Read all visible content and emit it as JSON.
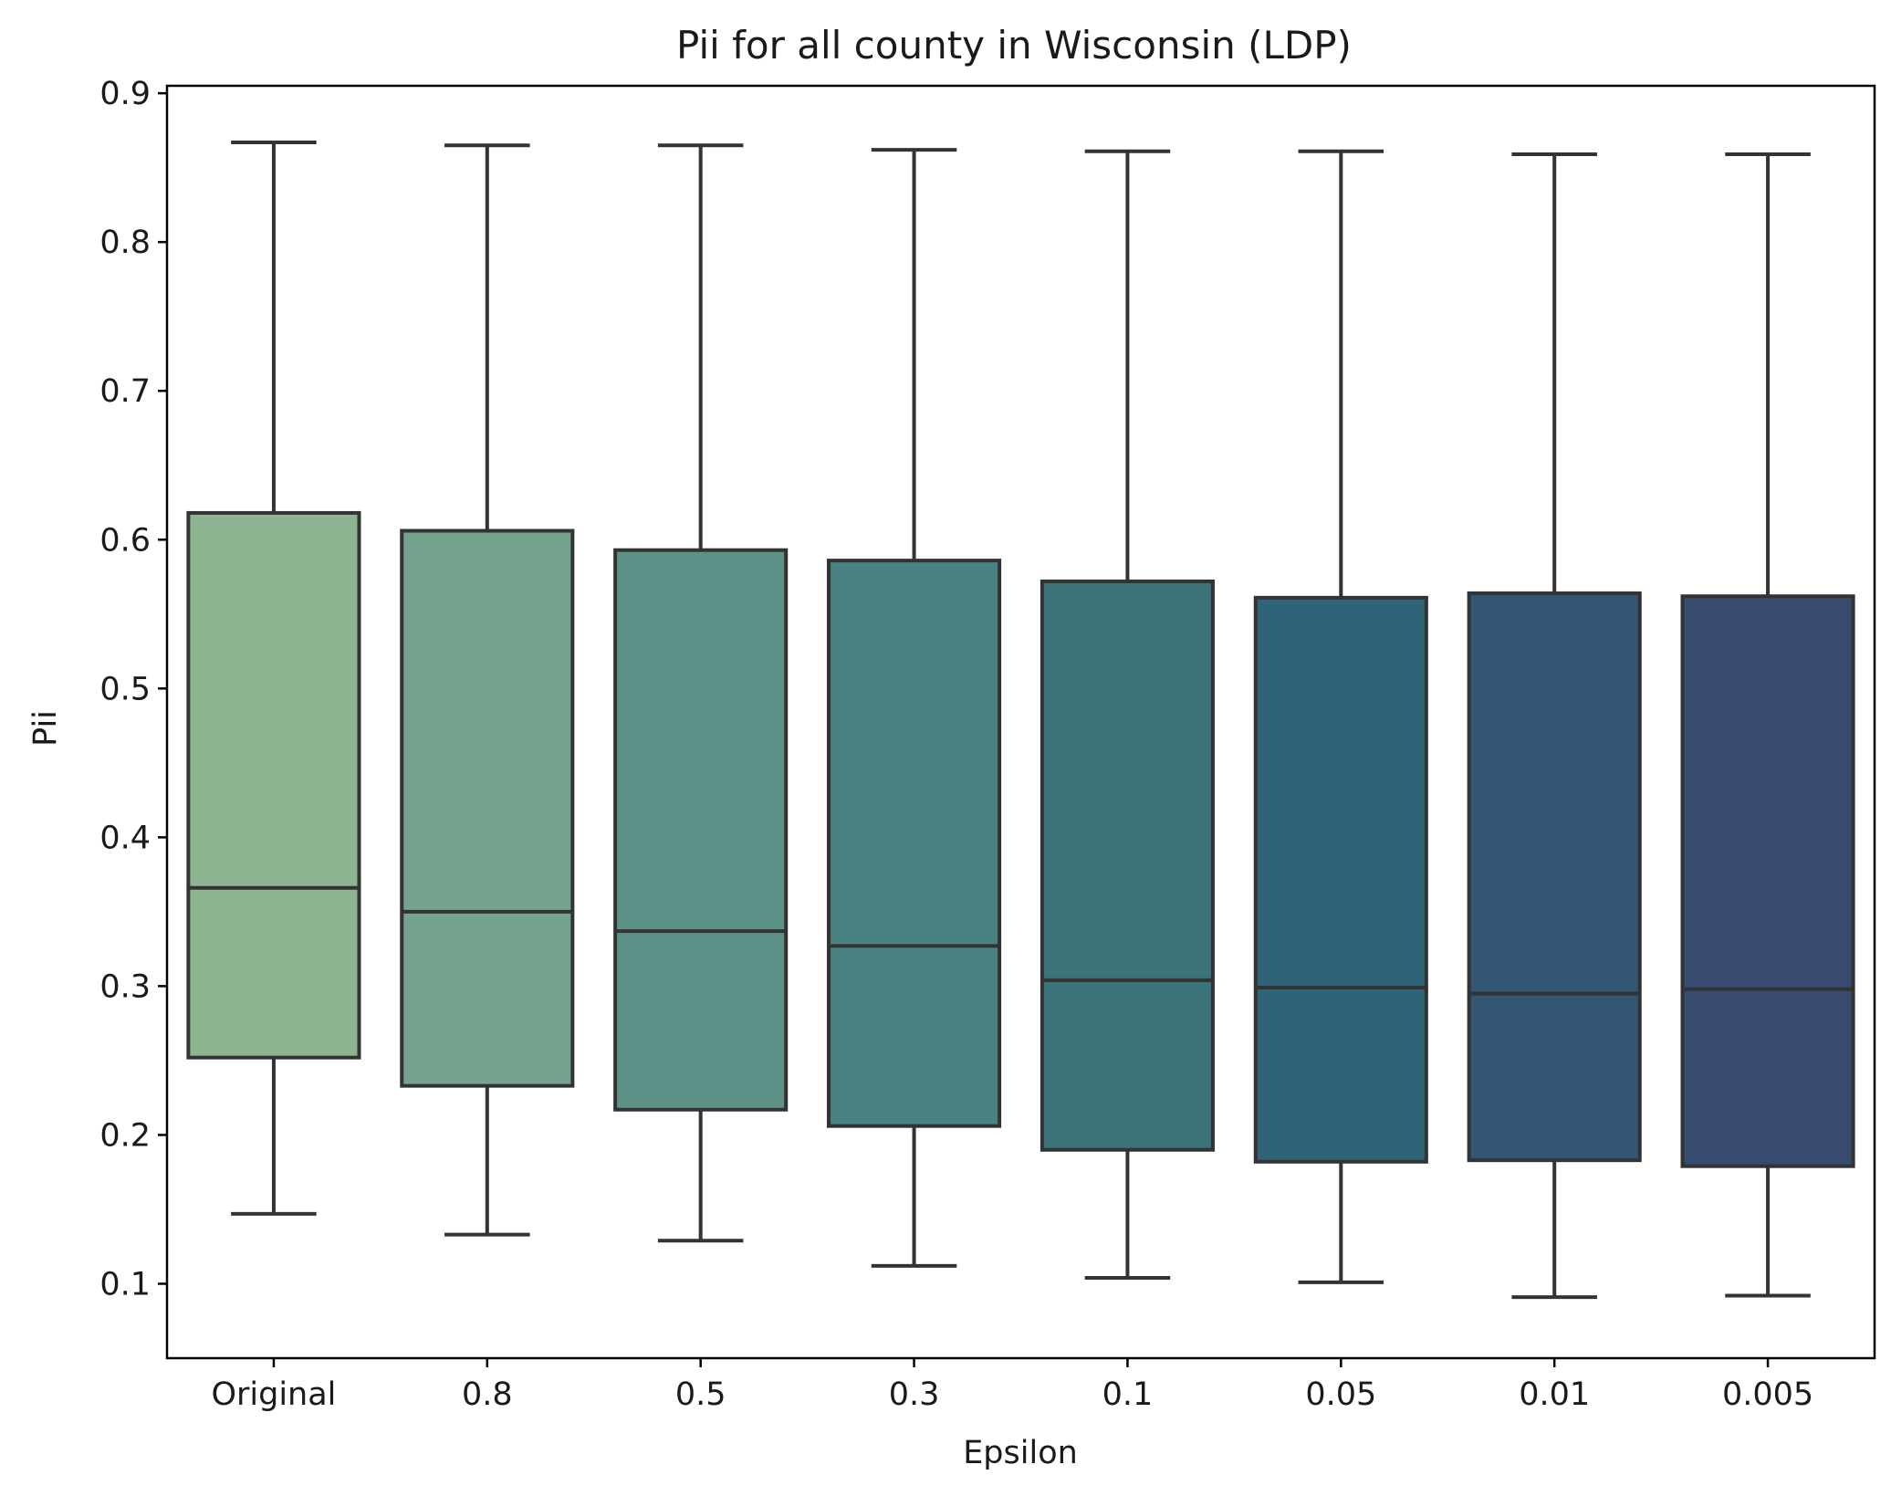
{
  "chart_data": {
    "type": "box",
    "title": "Pii for all county in Wisconsin (LDP)",
    "xlabel": "Epsilon",
    "ylabel": "Pii",
    "ylim": [
      0.05,
      0.905
    ],
    "yticks": [
      0.1,
      0.2,
      0.3,
      0.4,
      0.5,
      0.6,
      0.7,
      0.8,
      0.9
    ],
    "ytick_labels": [
      "0.1",
      "0.2",
      "0.3",
      "0.4",
      "0.5",
      "0.6",
      "0.7",
      "0.8",
      "0.9"
    ],
    "categories": [
      "Original",
      "0.8",
      "0.5",
      "0.3",
      "0.1",
      "0.05",
      "0.01",
      "0.005"
    ],
    "boxes": [
      {
        "category": "Original",
        "whisker_low": 0.147,
        "q1": 0.252,
        "median": 0.366,
        "q3": 0.618,
        "whisker_high": 0.867,
        "color": "#8db592"
      },
      {
        "category": "0.8",
        "whisker_low": 0.133,
        "q1": 0.233,
        "median": 0.35,
        "q3": 0.606,
        "whisker_high": 0.865,
        "color": "#76a38d"
      },
      {
        "category": "0.5",
        "whisker_low": 0.129,
        "q1": 0.217,
        "median": 0.337,
        "q3": 0.593,
        "whisker_high": 0.865,
        "color": "#5e9288"
      },
      {
        "category": "0.3",
        "whisker_low": 0.112,
        "q1": 0.206,
        "median": 0.327,
        "q3": 0.586,
        "whisker_high": 0.862,
        "color": "#4a8181"
      },
      {
        "category": "0.1",
        "whisker_low": 0.104,
        "q1": 0.19,
        "median": 0.304,
        "q3": 0.572,
        "whisker_high": 0.861,
        "color": "#3b737b"
      },
      {
        "category": "0.05",
        "whisker_low": 0.101,
        "q1": 0.182,
        "median": 0.299,
        "q3": 0.561,
        "whisker_high": 0.861,
        "color": "#2f6378"
      },
      {
        "category": "0.01",
        "whisker_low": 0.091,
        "q1": 0.183,
        "median": 0.295,
        "q3": 0.564,
        "whisker_high": 0.859,
        "color": "#325674"
      },
      {
        "category": "0.005",
        "whisker_low": 0.092,
        "q1": 0.179,
        "median": 0.298,
        "q3": 0.562,
        "whisker_high": 0.859,
        "color": "#374b70"
      }
    ],
    "outline_color": "#333333",
    "grid": false,
    "legend": false
  }
}
